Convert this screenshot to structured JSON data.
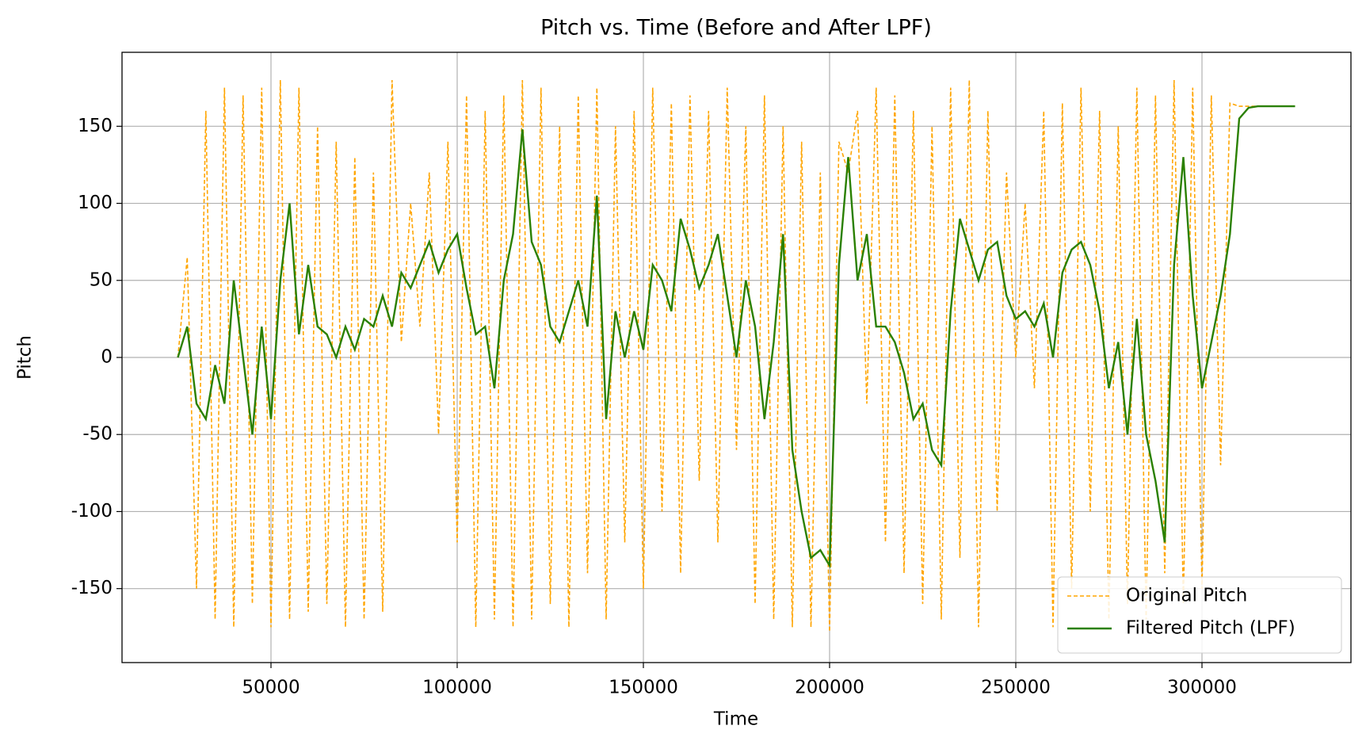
{
  "chart_data": {
    "type": "line",
    "title": "Pitch vs. Time (Before and After LPF)",
    "x_label": "Time",
    "y_label": "Pitch",
    "x": [
      25000,
      27500,
      30000,
      32500,
      35000,
      37500,
      40000,
      42500,
      45000,
      47500,
      50000,
      52500,
      55000,
      57500,
      60000,
      62500,
      65000,
      67500,
      70000,
      72500,
      75000,
      77500,
      80000,
      82500,
      85000,
      87500,
      90000,
      92500,
      95000,
      97500,
      100000,
      102500,
      105000,
      107500,
      110000,
      112500,
      115000,
      117500,
      120000,
      122500,
      125000,
      127500,
      130000,
      132500,
      135000,
      137500,
      140000,
      142500,
      145000,
      147500,
      150000,
      152500,
      155000,
      157500,
      160000,
      162500,
      165000,
      167500,
      170000,
      172500,
      175000,
      177500,
      180000,
      182500,
      185000,
      187500,
      190000,
      192500,
      195000,
      197500,
      200000,
      202500,
      205000,
      207500,
      210000,
      212500,
      215000,
      217500,
      220000,
      222500,
      225000,
      227500,
      230000,
      232500,
      235000,
      237500,
      240000,
      242500,
      245000,
      247500,
      250000,
      252500,
      255000,
      257500,
      260000,
      262500,
      265000,
      267500,
      270000,
      272500,
      275000,
      277500,
      280000,
      282500,
      285000,
      287500,
      290000,
      292500,
      295000,
      297500,
      300000,
      302500,
      305000,
      307500,
      310000,
      312500,
      315000,
      317500,
      320000,
      322500,
      325000
    ],
    "series": [
      {
        "name": "Original Pitch",
        "color": "#ffa500",
        "dashed": true,
        "values": [
          0,
          65,
          -150,
          160,
          -170,
          175,
          -175,
          170,
          -160,
          175,
          -175,
          180,
          -170,
          175,
          -165,
          150,
          -160,
          140,
          -175,
          130,
          -170,
          120,
          -165,
          180,
          10,
          100,
          20,
          120,
          -50,
          140,
          -120,
          170,
          -175,
          160,
          -170,
          170,
          -175,
          180,
          -170,
          175,
          -160,
          150,
          -175,
          170,
          -140,
          175,
          -170,
          150,
          -120,
          160,
          -150,
          175,
          -100,
          165,
          -140,
          170,
          -80,
          160,
          -120,
          175,
          -60,
          150,
          -160,
          170,
          -170,
          150,
          -175,
          140,
          -175,
          120,
          -178,
          140,
          120,
          160,
          -30,
          175,
          -120,
          170,
          -140,
          160,
          -160,
          150,
          -170,
          175,
          -130,
          180,
          -175,
          160,
          -100,
          120,
          0,
          100,
          -20,
          160,
          -175,
          165,
          -150,
          175,
          -100,
          160,
          -170,
          150,
          -160,
          175,
          -170,
          170,
          -140,
          180,
          -160,
          175,
          -150,
          170,
          -70,
          165,
          163,
          163,
          163,
          163,
          163,
          163,
          163
        ]
      },
      {
        "name": "Filtered Pitch (LPF)",
        "color": "#2a8000",
        "dashed": false,
        "values": [
          0,
          20,
          -30,
          -40,
          -5,
          -30,
          50,
          0,
          -50,
          20,
          -40,
          50,
          100,
          15,
          60,
          20,
          15,
          0,
          20,
          5,
          25,
          20,
          40,
          20,
          55,
          45,
          60,
          75,
          55,
          70,
          80,
          45,
          15,
          20,
          -20,
          50,
          80,
          148,
          75,
          60,
          20,
          10,
          30,
          50,
          20,
          105,
          -40,
          30,
          0,
          30,
          5,
          60,
          50,
          30,
          90,
          70,
          45,
          60,
          80,
          40,
          0,
          50,
          20,
          -40,
          10,
          80,
          -60,
          -100,
          -130,
          -125,
          -135,
          60,
          130,
          50,
          80,
          20,
          20,
          10,
          -10,
          -40,
          -30,
          -60,
          -70,
          30,
          90,
          70,
          50,
          70,
          75,
          40,
          25,
          30,
          20,
          35,
          0,
          55,
          70,
          75,
          60,
          30,
          -20,
          10,
          -50,
          25,
          -50,
          -80,
          -120,
          60,
          130,
          40,
          -20,
          10,
          40,
          80,
          155,
          162,
          163,
          163,
          163,
          163,
          163
        ]
      }
    ],
    "xlim": [
      10000,
      340000
    ],
    "xticks": [
      50000,
      100000,
      150000,
      200000,
      250000,
      300000
    ],
    "ylim": [
      -198,
      198
    ],
    "yticks": [
      -150,
      -100,
      -50,
      0,
      50,
      100,
      150
    ],
    "grid": true,
    "legend": "lower right"
  }
}
